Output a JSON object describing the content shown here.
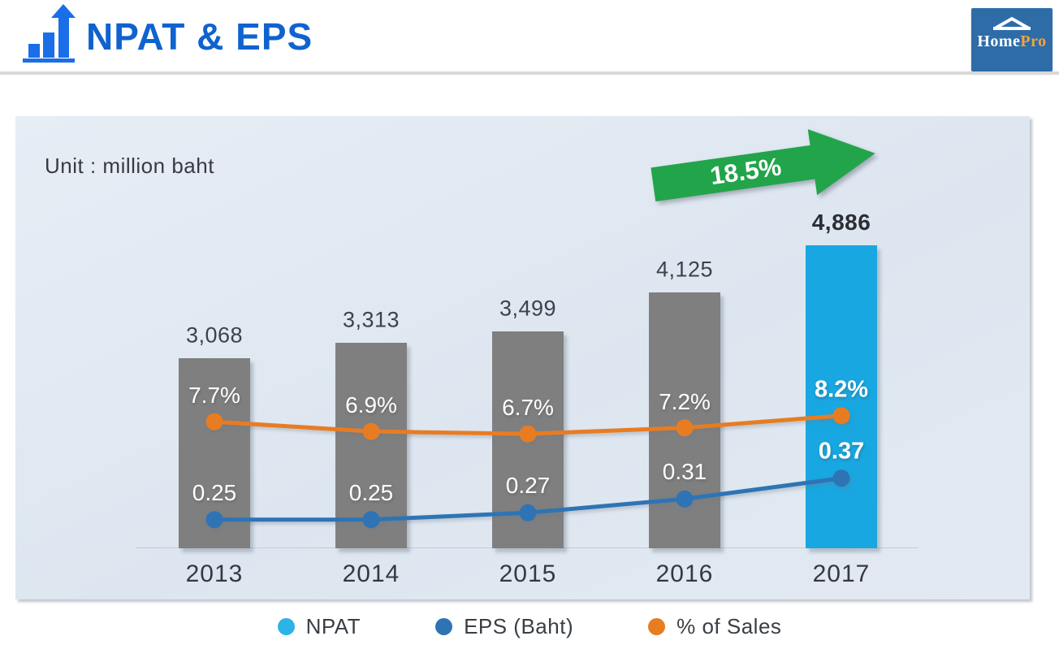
{
  "header": {
    "title": "NPAT & EPS",
    "logo": {
      "text_primary": "Home",
      "text_secondary": "Pro",
      "bg_color": "#2e6ca8",
      "pro_color": "#f0a53d"
    }
  },
  "panel": {
    "unit_label": "Unit : million baht",
    "growth_arrow_label": "18.5%",
    "growth_arrow_color": "#22a44a"
  },
  "chart_data": {
    "type": "combo-bar-line",
    "title": "NPAT & EPS",
    "unit": "million baht",
    "categories": [
      "2013",
      "2014",
      "2015",
      "2016",
      "2017"
    ],
    "series": [
      {
        "name": "NPAT",
        "type": "bar",
        "values": [
          3068,
          3313,
          3499,
          4125,
          4886
        ],
        "labels": [
          "3,068",
          "3,313",
          "3,499",
          "4,125",
          "4,886"
        ],
        "bar_color_default": "#7f7f7f",
        "bar_color_highlight": "#18a7e1"
      },
      {
        "name": "EPS (Baht)",
        "type": "line",
        "values": [
          0.25,
          0.25,
          0.27,
          0.31,
          0.37
        ],
        "labels": [
          "0.25",
          "0.25",
          "0.27",
          "0.31",
          "0.37"
        ],
        "color": "#2e74b5"
      },
      {
        "name": "% of Sales",
        "type": "line",
        "values": [
          7.7,
          6.9,
          6.7,
          7.2,
          8.2
        ],
        "labels": [
          "7.7%",
          "6.9%",
          "6.7%",
          "7.2%",
          "8.2%"
        ],
        "color": "#e87c22"
      }
    ],
    "highlight_index": 4,
    "highlight_category": "2017",
    "growth_annotation": "18.5%",
    "axis": {
      "y_axis_visible": false,
      "gridlines": false,
      "x_axis_line": true
    }
  },
  "legend": {
    "items": [
      {
        "label": "NPAT",
        "color": "#2cb3e8"
      },
      {
        "label": "EPS (Baht)",
        "color": "#2e74b5"
      },
      {
        "label": "% of Sales",
        "color": "#e87c22"
      }
    ]
  }
}
